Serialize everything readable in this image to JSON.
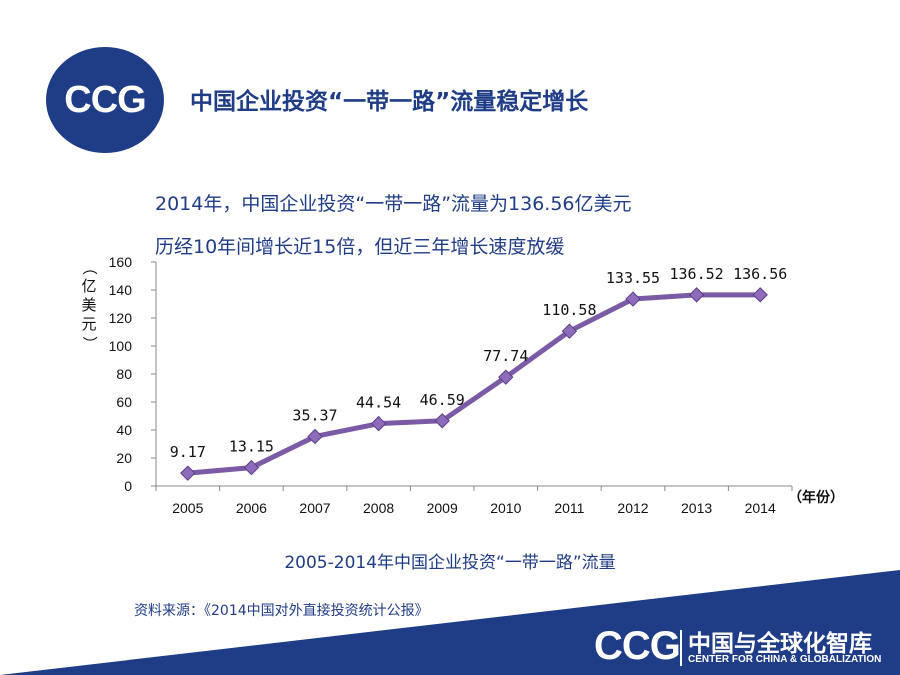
{
  "logo": {
    "text": "CCG"
  },
  "title": "中国企业投资“一带一路”流量稳定增长",
  "headlines": [
    "2014年，中国企业投资“一带一路”流量为136.56亿美元",
    "历经10年间增长近15倍，但近三年增长速度放缓"
  ],
  "colors": {
    "accent": "#1f3c86",
    "line": "#7b5aa6",
    "marker": "#8f6bbb"
  },
  "chart_data": {
    "type": "line",
    "categories": [
      "2005",
      "2006",
      "2007",
      "2008",
      "2009",
      "2010",
      "2011",
      "2012",
      "2013",
      "2014"
    ],
    "values": [
      9.17,
      13.15,
      35.37,
      44.54,
      46.59,
      77.74,
      110.58,
      133.55,
      136.52,
      136.56
    ],
    "data_labels": [
      "9.17",
      "13.15",
      "35.37",
      "44.54",
      "46.59",
      "77.74",
      "110.58",
      "133.55",
      "136.52",
      "136.56"
    ],
    "yticks": [
      "0",
      "20",
      "40",
      "60",
      "80",
      "100",
      "120",
      "140",
      "160"
    ],
    "ylim": [
      0,
      160
    ],
    "ylabel": "（亿美元）",
    "xlabel": "（年份）",
    "grid": false,
    "legend": "none"
  },
  "caption": "2005-2014年中国企业投资“一带一路”流量",
  "source": "资料来源：《2014中国对外直接投资统计公报》",
  "footer": {
    "brand": "CCG",
    "brand_cn": "中国与全球化智库",
    "brand_en": "CENTER FOR CHINA & GLOBALIZATION"
  }
}
